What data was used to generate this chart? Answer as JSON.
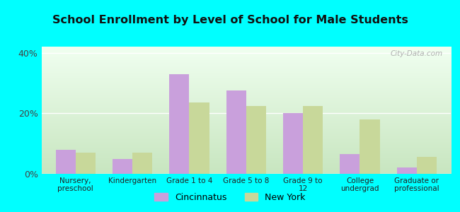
{
  "title": "School Enrollment by Level of School for Male Students",
  "categories": [
    "Nursery,\npreschool",
    "Kindergarten",
    "Grade 1 to 4",
    "Grade 5 to 8",
    "Grade 9 to\n12",
    "College\nundergrad",
    "Graduate or\nprofessional"
  ],
  "cincinnatus": [
    8.0,
    5.0,
    33.0,
    27.5,
    20.0,
    6.5,
    2.0
  ],
  "new_york": [
    7.0,
    7.0,
    23.5,
    22.5,
    22.5,
    18.0,
    5.5
  ],
  "cincinnatus_color": "#c9a0dc",
  "new_york_color": "#c8d89a",
  "background_color": "#00FFFF",
  "ylim": [
    0,
    42
  ],
  "yticks": [
    0,
    20,
    40
  ],
  "ytick_labels": [
    "0%",
    "20%",
    "40%"
  ],
  "legend_cincinnatus": "Cincinnatus",
  "legend_new_york": "New York",
  "bar_width": 0.35,
  "grad_top": "#f0fff0",
  "grad_bottom": "#c8e6c0"
}
